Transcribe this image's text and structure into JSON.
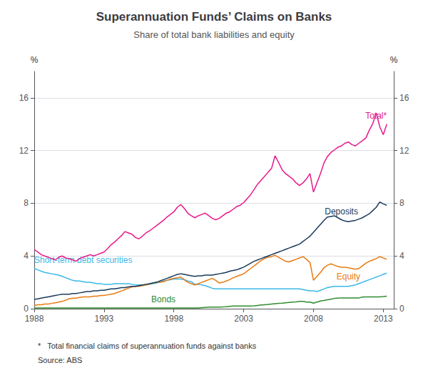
{
  "chart_data": {
    "type": "line",
    "title": "Superannuation Funds’ Claims on Banks",
    "subtitle": "Share of total bank liabilities and equity",
    "ylabel": "%",
    "y2label": "%",
    "footnote": "*   Total financial claims of superannuation funds against banks",
    "source": "Source: ABS",
    "xlim": [
      1988,
      2013.75
    ],
    "xticks": [
      1988,
      1993,
      1998,
      2003,
      2008,
      2013
    ],
    "ylim": [
      0,
      18
    ],
    "yticks": [
      0,
      4,
      8,
      12,
      16
    ],
    "y2lim": [
      0,
      18
    ],
    "y2ticks": [
      0,
      4,
      8,
      12,
      16
    ],
    "grid": "y",
    "x": [
      1988.0,
      1988.25,
      1988.5,
      1988.75,
      1989.0,
      1989.25,
      1989.5,
      1989.75,
      1990.0,
      1990.25,
      1990.5,
      1990.75,
      1991.0,
      1991.25,
      1991.5,
      1991.75,
      1992.0,
      1992.25,
      1992.5,
      1992.75,
      1993.0,
      1993.25,
      1993.5,
      1993.75,
      1994.0,
      1994.25,
      1994.5,
      1994.75,
      1995.0,
      1995.25,
      1995.5,
      1995.75,
      1996.0,
      1996.25,
      1996.5,
      1996.75,
      1997.0,
      1997.25,
      1997.5,
      1997.75,
      1998.0,
      1998.25,
      1998.5,
      1998.75,
      1999.0,
      1999.25,
      1999.5,
      1999.75,
      2000.0,
      2000.25,
      2000.5,
      2000.75,
      2001.0,
      2001.25,
      2001.5,
      2001.75,
      2002.0,
      2002.25,
      2002.5,
      2002.75,
      2003.0,
      2003.25,
      2003.5,
      2003.75,
      2004.0,
      2004.25,
      2004.5,
      2004.75,
      2005.0,
      2005.25,
      2005.5,
      2005.75,
      2006.0,
      2006.25,
      2006.5,
      2006.75,
      2007.0,
      2007.25,
      2007.5,
      2007.75,
      2008.0,
      2008.25,
      2008.5,
      2008.75,
      2009.0,
      2009.25,
      2009.5,
      2009.75,
      2010.0,
      2010.25,
      2010.5,
      2010.75,
      2011.0,
      2011.25,
      2011.5,
      2011.75,
      2012.0,
      2012.25,
      2012.5,
      2012.75,
      2013.0,
      2013.25
    ],
    "series": [
      {
        "name": "Total*",
        "color": "#E8198B",
        "values": [
          4.5,
          4.3,
          4.1,
          4.0,
          3.9,
          3.8,
          3.7,
          3.9,
          4.0,
          3.85,
          3.8,
          3.7,
          3.6,
          3.8,
          3.9,
          4.0,
          4.1,
          4.0,
          4.1,
          4.2,
          4.3,
          4.55,
          4.85,
          5.05,
          5.3,
          5.55,
          5.85,
          5.75,
          5.65,
          5.4,
          5.3,
          5.5,
          5.75,
          5.9,
          6.1,
          6.3,
          6.5,
          6.7,
          6.95,
          7.15,
          7.35,
          7.7,
          7.9,
          7.6,
          7.25,
          7.05,
          6.9,
          7.05,
          7.15,
          7.25,
          7.05,
          6.85,
          6.75,
          6.85,
          7.05,
          7.25,
          7.35,
          7.55,
          7.75,
          7.85,
          8.05,
          8.35,
          8.65,
          9.05,
          9.45,
          9.75,
          10.05,
          10.35,
          10.65,
          11.6,
          11.1,
          10.55,
          10.25,
          10.05,
          9.85,
          9.55,
          9.35,
          9.55,
          9.85,
          10.25,
          8.85,
          9.55,
          10.25,
          11.05,
          11.55,
          11.85,
          12.05,
          12.25,
          12.35,
          12.55,
          12.65,
          12.45,
          12.35,
          12.55,
          12.75,
          12.95,
          13.55,
          14.05,
          14.85,
          13.8,
          13.2,
          14.0
        ]
      },
      {
        "name": "Deposits",
        "color": "#1A3A5C",
        "values": [
          0.7,
          0.75,
          0.8,
          0.85,
          0.9,
          0.95,
          1.0,
          1.05,
          1.1,
          1.1,
          1.1,
          1.15,
          1.15,
          1.2,
          1.25,
          1.3,
          1.3,
          1.35,
          1.35,
          1.4,
          1.4,
          1.45,
          1.5,
          1.5,
          1.55,
          1.6,
          1.6,
          1.65,
          1.7,
          1.7,
          1.75,
          1.8,
          1.85,
          1.9,
          1.95,
          2.0,
          2.1,
          2.2,
          2.3,
          2.4,
          2.5,
          2.6,
          2.65,
          2.6,
          2.55,
          2.5,
          2.45,
          2.5,
          2.5,
          2.55,
          2.55,
          2.55,
          2.6,
          2.65,
          2.7,
          2.75,
          2.85,
          2.9,
          2.95,
          3.05,
          3.15,
          3.3,
          3.45,
          3.6,
          3.7,
          3.8,
          3.9,
          4.0,
          4.1,
          4.2,
          4.3,
          4.4,
          4.5,
          4.6,
          4.7,
          4.8,
          4.9,
          5.1,
          5.3,
          5.5,
          5.8,
          6.1,
          6.4,
          6.7,
          6.95,
          7.0,
          7.05,
          6.9,
          6.75,
          6.65,
          6.6,
          6.65,
          6.7,
          6.8,
          6.9,
          7.05,
          7.2,
          7.45,
          7.7,
          8.1,
          7.95,
          7.85
        ]
      },
      {
        "name": "Equity",
        "color": "#E87A10",
        "values": [
          0.25,
          0.3,
          0.3,
          0.35,
          0.35,
          0.4,
          0.45,
          0.5,
          0.55,
          0.65,
          0.75,
          0.8,
          0.8,
          0.85,
          0.9,
          0.9,
          0.9,
          0.95,
          0.95,
          1.0,
          1.0,
          1.05,
          1.1,
          1.15,
          1.25,
          1.35,
          1.45,
          1.55,
          1.65,
          1.7,
          1.7,
          1.75,
          1.8,
          1.85,
          1.95,
          2.0,
          2.0,
          2.05,
          2.15,
          2.25,
          2.3,
          2.35,
          2.4,
          2.2,
          2.0,
          1.9,
          1.8,
          1.9,
          2.0,
          2.1,
          2.2,
          2.3,
          2.15,
          1.95,
          2.0,
          2.1,
          2.2,
          2.35,
          2.45,
          2.55,
          2.65,
          2.85,
          3.05,
          3.25,
          3.45,
          3.65,
          3.8,
          3.9,
          3.95,
          4.05,
          3.9,
          3.75,
          3.6,
          3.55,
          3.65,
          3.75,
          3.85,
          3.95,
          3.75,
          3.5,
          2.15,
          2.45,
          2.75,
          3.1,
          3.3,
          3.4,
          3.3,
          3.2,
          3.15,
          3.15,
          3.1,
          3.05,
          3.0,
          3.05,
          3.25,
          3.45,
          3.6,
          3.7,
          3.8,
          3.95,
          3.85,
          3.75
        ]
      },
      {
        "name": "Short-term debt securities",
        "color": "#3BB8E8",
        "values": [
          3.05,
          2.95,
          2.85,
          2.75,
          2.7,
          2.65,
          2.6,
          2.55,
          2.45,
          2.35,
          2.25,
          2.15,
          2.1,
          2.1,
          2.05,
          2.0,
          2.0,
          1.95,
          1.9,
          1.9,
          1.85,
          1.85,
          1.85,
          1.9,
          1.9,
          1.9,
          1.9,
          1.9,
          1.85,
          1.8,
          1.8,
          1.8,
          1.8,
          1.85,
          1.9,
          1.95,
          2.0,
          2.1,
          2.15,
          2.2,
          2.25,
          2.25,
          2.25,
          2.2,
          2.1,
          2.05,
          1.85,
          1.85,
          1.8,
          1.75,
          1.65,
          1.55,
          1.5,
          1.5,
          1.5,
          1.5,
          1.5,
          1.5,
          1.5,
          1.5,
          1.5,
          1.5,
          1.5,
          1.5,
          1.5,
          1.5,
          1.5,
          1.5,
          1.5,
          1.5,
          1.5,
          1.5,
          1.5,
          1.5,
          1.5,
          1.5,
          1.5,
          1.45,
          1.4,
          1.35,
          1.35,
          1.3,
          1.4,
          1.5,
          1.6,
          1.65,
          1.7,
          1.7,
          1.7,
          1.7,
          1.7,
          1.75,
          1.8,
          1.9,
          2.0,
          2.1,
          2.2,
          2.3,
          2.4,
          2.5,
          2.6,
          2.7
        ]
      },
      {
        "name": "Bonds",
        "color": "#2E8B2E",
        "values": [
          0.05,
          0.05,
          0.05,
          0.05,
          0.05,
          0.05,
          0.05,
          0.05,
          0.05,
          0.05,
          0.05,
          0.05,
          0.05,
          0.05,
          0.05,
          0.05,
          0.05,
          0.05,
          0.05,
          0.05,
          0.05,
          0.05,
          0.05,
          0.05,
          0.05,
          0.05,
          0.05,
          0.05,
          0.05,
          0.05,
          0.05,
          0.05,
          0.05,
          0.05,
          0.05,
          0.05,
          0.05,
          0.05,
          0.05,
          0.05,
          0.05,
          0.05,
          0.05,
          0.05,
          0.05,
          0.05,
          0.05,
          0.05,
          0.08,
          0.1,
          0.12,
          0.12,
          0.12,
          0.12,
          0.13,
          0.15,
          0.18,
          0.2,
          0.2,
          0.2,
          0.2,
          0.2,
          0.2,
          0.22,
          0.25,
          0.28,
          0.3,
          0.32,
          0.35,
          0.38,
          0.4,
          0.42,
          0.45,
          0.48,
          0.5,
          0.52,
          0.55,
          0.55,
          0.5,
          0.5,
          0.42,
          0.5,
          0.58,
          0.62,
          0.68,
          0.72,
          0.78,
          0.8,
          0.82,
          0.82,
          0.82,
          0.82,
          0.82,
          0.82,
          0.88,
          0.9,
          0.9,
          0.9,
          0.9,
          0.9,
          0.92,
          0.95
        ]
      }
    ]
  }
}
